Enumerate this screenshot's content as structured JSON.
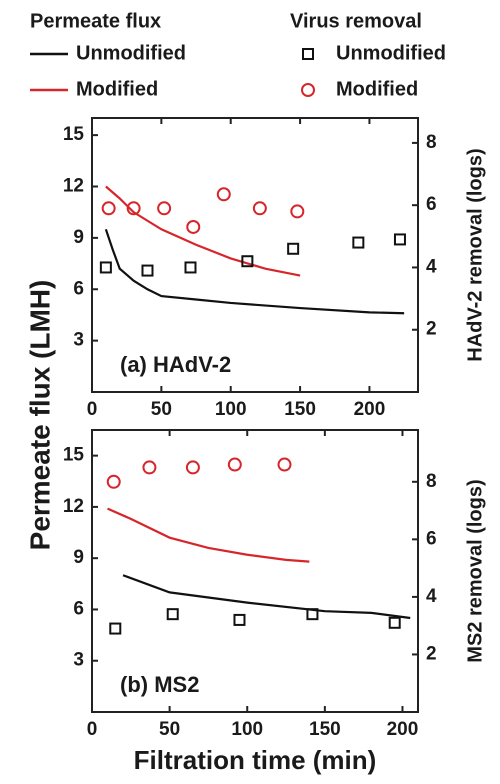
{
  "chart_data": [
    {
      "type": "line",
      "ylabel": "Permeate flux (LMH)",
      "y2label": "HAdV-2 removal (logs)",
      "annotation": "(a) HAdV-2",
      "legend_titles": [
        "Permeate flux",
        "Virus removal"
      ],
      "xlim": [
        0,
        235
      ],
      "xticks": [
        0,
        50,
        100,
        150,
        200
      ],
      "ylim": [
        0,
        16
      ],
      "yticks": [
        3,
        6,
        9,
        12,
        15
      ],
      "y2lim": [
        0,
        8.8
      ],
      "y2ticks": [
        2,
        4,
        6,
        8
      ],
      "series": [
        {
          "name": "Unmodified",
          "color": "#111111",
          "style": "line",
          "x": [
            10,
            15,
            20,
            30,
            40,
            50,
            75,
            100,
            150,
            200,
            225
          ],
          "values": [
            9.5,
            8.3,
            7.2,
            6.5,
            6.0,
            5.6,
            5.4,
            5.2,
            4.9,
            4.65,
            4.6
          ]
        },
        {
          "name": "Modified",
          "color": "#d7262b",
          "style": "line",
          "x": [
            10,
            20,
            30,
            40,
            50,
            75,
            100,
            125,
            150
          ],
          "values": [
            12,
            11.3,
            10.5,
            10.0,
            9.5,
            8.6,
            7.8,
            7.2,
            6.8
          ]
        },
        {
          "name": "Unmodified",
          "color": "#111111",
          "style": "square",
          "axis": "y2",
          "x": [
            10,
            40,
            71,
            112,
            145,
            192,
            222
          ],
          "values": [
            4.0,
            3.9,
            4.0,
            4.2,
            4.6,
            4.8,
            4.9
          ]
        },
        {
          "name": "Modified",
          "color": "#d7262b",
          "style": "circle",
          "axis": "y2",
          "x": [
            12,
            30,
            52,
            73,
            95,
            121,
            148
          ],
          "values": [
            5.9,
            5.9,
            5.9,
            5.3,
            6.35,
            5.9,
            5.8
          ]
        }
      ]
    },
    {
      "type": "line",
      "xlabel": "Filtration time (min)",
      "y2label": "MS2 removal (logs)",
      "annotation": "(b) MS2",
      "xlim": [
        0,
        210
      ],
      "xticks": [
        0,
        50,
        100,
        150,
        200
      ],
      "ylim": [
        0,
        16.5
      ],
      "yticks": [
        3,
        6,
        9,
        12,
        15
      ],
      "y2lim": [
        0,
        9.8
      ],
      "y2ticks": [
        2,
        4,
        6,
        8
      ],
      "series": [
        {
          "color": "#111111",
          "style": "line",
          "x": [
            20,
            50,
            100,
            150,
            180,
            205
          ],
          "values": [
            8.0,
            7.0,
            6.4,
            5.9,
            5.8,
            5.5
          ]
        },
        {
          "color": "#d7262b",
          "style": "line",
          "x": [
            10,
            25,
            50,
            75,
            100,
            125,
            140
          ],
          "values": [
            11.9,
            11.3,
            10.2,
            9.6,
            9.2,
            8.9,
            8.8
          ]
        },
        {
          "color": "#111111",
          "style": "square",
          "axis": "y2",
          "x": [
            15,
            52,
            95,
            142,
            195
          ],
          "values": [
            2.9,
            3.4,
            3.2,
            3.4,
            3.1
          ]
        },
        {
          "color": "#d7262b",
          "style": "circle",
          "axis": "y2",
          "x": [
            14,
            37,
            65,
            92,
            124
          ],
          "values": [
            8.0,
            8.5,
            8.5,
            8.6,
            8.6
          ]
        }
      ]
    }
  ]
}
